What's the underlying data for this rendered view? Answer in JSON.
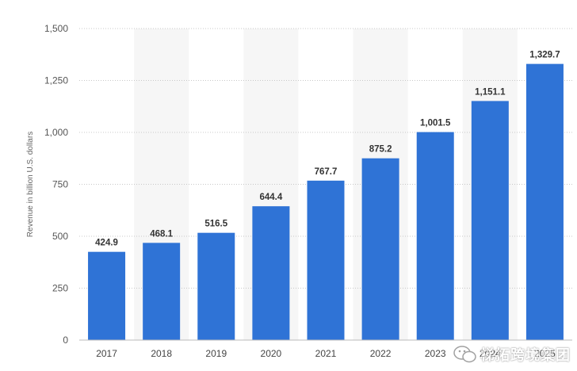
{
  "chart_data": {
    "type": "bar",
    "categories": [
      "2017",
      "2018",
      "2019",
      "2020",
      "2021",
      "2022",
      "2023",
      "2024",
      "2025"
    ],
    "values": [
      424.9,
      468.1,
      516.5,
      644.4,
      767.7,
      875.2,
      1001.5,
      1151.1,
      1329.7
    ],
    "value_labels": [
      "424.9",
      "468.1",
      "516.5",
      "644.4",
      "767.7",
      "875.2",
      "1,001.5",
      "1,151.1",
      "1,329.7"
    ],
    "title": "",
    "xlabel": "",
    "ylabel": "Revenue in billion U.S. dollars",
    "ylim": [
      0,
      1500
    ],
    "yticks": [
      0,
      250,
      500,
      750,
      1000,
      1250,
      1500
    ],
    "ytick_labels": [
      "0",
      "250",
      "500",
      "750",
      "1,000",
      "1,250",
      "1,500"
    ],
    "grid": true,
    "bar_color": "#2f73d6"
  },
  "watermark": {
    "text": "梯拓跨境集团",
    "icon": "wechat-icon"
  }
}
